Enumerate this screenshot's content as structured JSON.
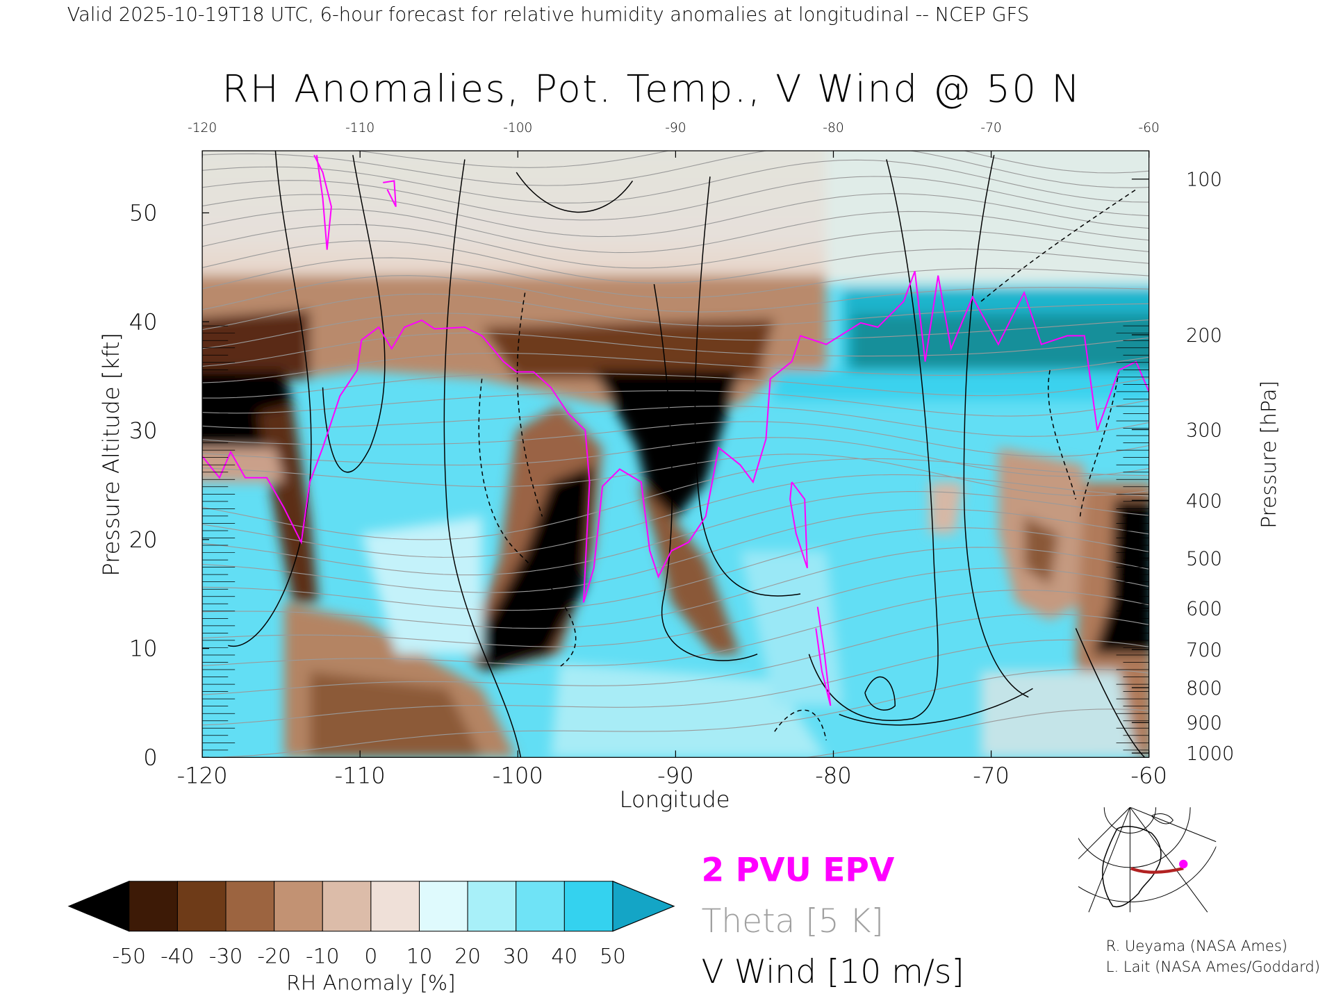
{
  "header": {
    "subtitle": "Valid 2025-10-19T18 UTC, 6-hour forecast for relative humidity anomalies at longitudinal -- NCEP GFS"
  },
  "chart_data": {
    "type": "heatmap",
    "title": "RH Anomalies, Pot. Temp., V Wind @ 50 N",
    "xlabel": "Longitude",
    "ylabel": "Pressure Altitude [kft]",
    "y2label": "Pressure [hPa]",
    "xlim": [
      -120,
      -60
    ],
    "ylim": [
      0,
      55.7
    ],
    "x_ticks": [
      "-120",
      "-110",
      "-100",
      "-90",
      "-80",
      "-70",
      "-60"
    ],
    "x_tick_values": [
      -120,
      -110,
      -100,
      -90,
      -80,
      -70,
      -60
    ],
    "top_ticks": [
      "-120",
      "-110",
      "-100",
      "-90",
      "-80",
      "-70",
      "-60"
    ],
    "y_ticks": [
      "0",
      "10",
      "20",
      "30",
      "40",
      "50"
    ],
    "y_tick_values": [
      0,
      10,
      20,
      30,
      40,
      50
    ],
    "pressure_ticks": [
      "100",
      "200",
      "300",
      "400",
      "500",
      "600",
      "700",
      "800",
      "900",
      "1000"
    ],
    "pressure_tick_kft": [
      53.1,
      38.8,
      30.1,
      23.6,
      18.3,
      13.7,
      9.9,
      6.4,
      3.2,
      0.4
    ],
    "colorbar": {
      "label": "RH Anomaly [%]",
      "ticks": [
        "-50",
        "-40",
        "-30",
        "-20",
        "-10",
        "0",
        "10",
        "20",
        "30",
        "40",
        "50"
      ],
      "colors": [
        "#000000",
        "#3d1a06",
        "#6e3b18",
        "#9c6440",
        "#c29273",
        "#dcbca9",
        "#efe0d8",
        "#dffafd",
        "#a8f0f9",
        "#6fe3f6",
        "#34d2ef",
        "#14a5c6",
        "#0f8e88"
      ]
    },
    "legend": {
      "epv": "2 PVU EPV",
      "theta": "Theta [5 K]",
      "vwind": "V Wind [10 m/s]"
    },
    "series_colors": {
      "epv": "#ff00ff",
      "theta": "#a0a0a0",
      "vwind": "#000000"
    }
  },
  "credits": [
    "R. Ueyama (NASA Ames)",
    "L. Lait (NASA Ames/Goddard)"
  ]
}
